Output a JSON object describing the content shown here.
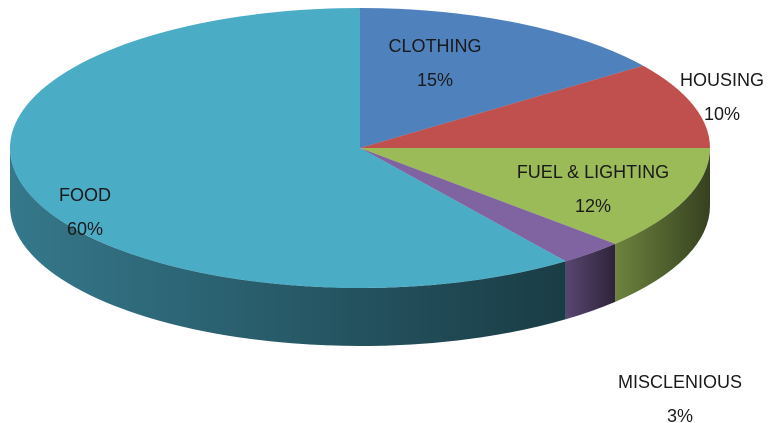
{
  "chart_data": {
    "type": "pie",
    "categories": [
      "CLOTHING",
      "HOUSING",
      "FUEL & LIGHTING",
      "MISCLENIOUS",
      "FOOD"
    ],
    "values": [
      15,
      10,
      12,
      3,
      60
    ],
    "value_labels": [
      "15%",
      "10%",
      "12%",
      "3%",
      "60%"
    ],
    "colors": [
      "#4f81bd",
      "#c0504d",
      "#9bbb59",
      "#8064a2",
      "#4bacc6"
    ]
  }
}
